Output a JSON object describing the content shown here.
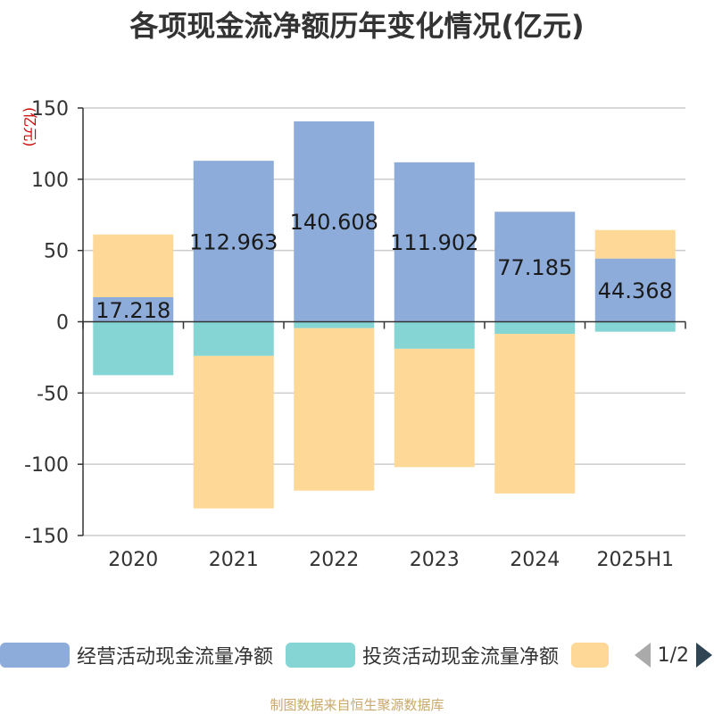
{
  "title": "各项现金流净额历年变化情况(亿元)",
  "source_note": "制图数据来自恒生聚源数据库",
  "chart_data": {
    "type": "bar",
    "stacked": true,
    "ylabel": "(亿元)",
    "ylim": [
      -150,
      150
    ],
    "yticks": [
      150,
      100,
      50,
      0,
      -50,
      -100,
      -150
    ],
    "grid": true,
    "categories": [
      "2020",
      "2021",
      "2022",
      "2023",
      "2024",
      "2025H1"
    ],
    "series": [
      {
        "name": "经营活动现金流量净额",
        "color": "#8eacd9",
        "values": [
          17.218,
          112.963,
          140.608,
          111.902,
          77.185,
          44.368
        ],
        "labels": [
          "17.218",
          "112.963",
          "140.608",
          "111.902",
          "77.185",
          "44.368"
        ]
      },
      {
        "name": "投资活动现金流量净额",
        "color": "#86d5d5",
        "values": [
          -37.5,
          -24.0,
          -4.5,
          -19.0,
          -8.5,
          -7.0
        ]
      },
      {
        "name": "",
        "color": "#fdd897",
        "values": [
          44.0,
          -107.0,
          -114.0,
          -83.0,
          -112.0,
          20.0
        ]
      }
    ]
  },
  "legend": {
    "items": [
      {
        "label": "经营活动现金流量净额",
        "color": "#8eacd9"
      },
      {
        "label": "投资活动现金流量净额",
        "color": "#86d5d5"
      },
      {
        "label": "",
        "color": "#fdd897"
      }
    ],
    "page_indicator": "1/2"
  }
}
